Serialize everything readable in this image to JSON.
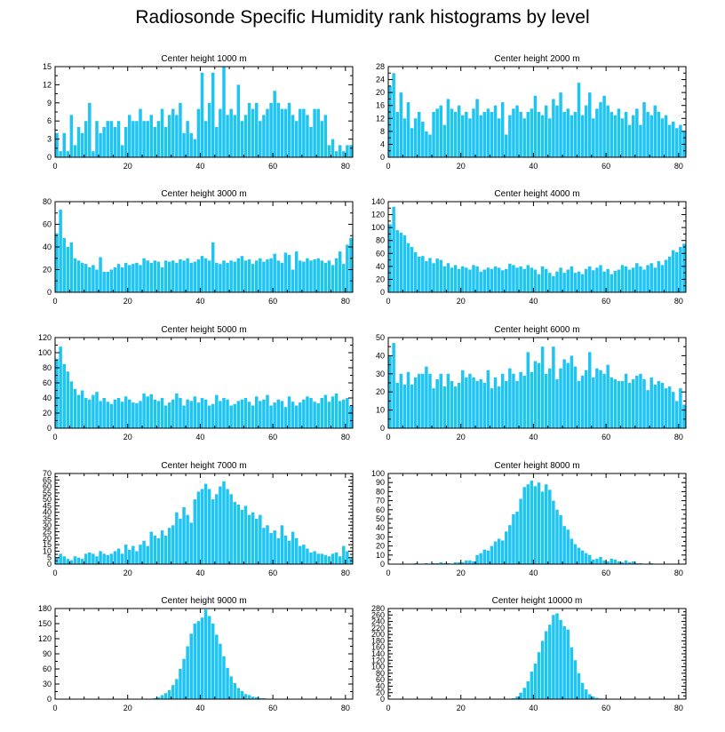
{
  "title": "Radiosonde Specific Humidity rank histograms by level",
  "bar_color": "#1ec4f2",
  "chart_data": [
    {
      "type": "bar",
      "title": "Center height 1000 m",
      "xlabel": "",
      "ylabel": "",
      "xlim": [
        0,
        82
      ],
      "ylim": [
        0,
        15
      ],
      "xticks": [
        0,
        20,
        40,
        60,
        80
      ],
      "yticks": [
        0,
        3,
        6,
        9,
        12,
        15
      ],
      "values": [
        4,
        1,
        4,
        1,
        7,
        2,
        5,
        4,
        6,
        9,
        1,
        6,
        4,
        5,
        6,
        6,
        5,
        6,
        2,
        5,
        7,
        6,
        6,
        8,
        6,
        6,
        7,
        5,
        6,
        8,
        5,
        7,
        8,
        7,
        9,
        4,
        6,
        4,
        3,
        8,
        14,
        6,
        9,
        14,
        5,
        8,
        15,
        7,
        8,
        7,
        12,
        6,
        7,
        9,
        8,
        9,
        6,
        7,
        8,
        9,
        11,
        9,
        8,
        8,
        9,
        7,
        6,
        8,
        8,
        7,
        5,
        8,
        8,
        6,
        7,
        2,
        3,
        1,
        2,
        1,
        2,
        2
      ]
    },
    {
      "type": "bar",
      "title": "Center height 2000 m",
      "xlabel": "",
      "ylabel": "",
      "xlim": [
        0,
        82
      ],
      "ylim": [
        0,
        28
      ],
      "xticks": [
        0,
        20,
        40,
        60,
        80
      ],
      "yticks": [
        0,
        4,
        8,
        12,
        16,
        20,
        24,
        28
      ],
      "values": [
        22,
        26,
        14,
        20,
        12,
        17,
        9,
        12,
        14,
        11,
        8,
        7,
        14,
        15,
        16,
        10,
        18,
        15,
        14,
        16,
        13,
        14,
        12,
        15,
        18,
        13,
        14,
        15,
        14,
        16,
        12,
        17,
        7,
        13,
        15,
        16,
        14,
        12,
        14,
        15,
        19,
        14,
        13,
        16,
        12,
        18,
        16,
        20,
        14,
        15,
        13,
        14,
        23,
        13,
        16,
        20,
        12,
        15,
        17,
        19,
        16,
        14,
        13,
        15,
        12,
        14,
        10,
        13,
        15,
        10,
        17,
        14,
        13,
        16,
        14,
        12,
        13,
        10,
        11,
        9,
        10,
        8
      ]
    },
    {
      "type": "bar",
      "title": "Center height 3000 m",
      "xlabel": "",
      "ylabel": "",
      "xlim": [
        0,
        82
      ],
      "ylim": [
        0,
        80
      ],
      "xticks": [
        0,
        20,
        40,
        60,
        80
      ],
      "yticks": [
        0,
        20,
        40,
        60,
        80
      ],
      "values": [
        52,
        73,
        48,
        40,
        44,
        30,
        28,
        26,
        25,
        22,
        24,
        20,
        31,
        18,
        18,
        20,
        22,
        25,
        22,
        26,
        24,
        25,
        26,
        24,
        30,
        28,
        26,
        28,
        27,
        22,
        28,
        27,
        28,
        26,
        29,
        28,
        30,
        26,
        27,
        29,
        32,
        30,
        28,
        44,
        26,
        25,
        28,
        26,
        28,
        27,
        30,
        32,
        28,
        29,
        25,
        28,
        30,
        27,
        29,
        30,
        34,
        28,
        26,
        35,
        33,
        20,
        36,
        28,
        27,
        30,
        28,
        29,
        30,
        28,
        26,
        28,
        24,
        30,
        36,
        25,
        42,
        48
      ]
    },
    {
      "type": "bar",
      "title": "Center height 4000 m",
      "xlabel": "",
      "ylabel": "",
      "xlim": [
        0,
        82
      ],
      "ylim": [
        0,
        140
      ],
      "xticks": [
        0,
        20,
        40,
        60,
        80
      ],
      "yticks": [
        0,
        20,
        40,
        60,
        80,
        100,
        120,
        140
      ],
      "values": [
        105,
        132,
        96,
        92,
        88,
        76,
        70,
        62,
        55,
        56,
        48,
        53,
        45,
        52,
        50,
        40,
        45,
        38,
        42,
        36,
        40,
        38,
        35,
        42,
        40,
        32,
        35,
        38,
        36,
        40,
        38,
        34,
        36,
        44,
        42,
        38,
        40,
        36,
        42,
        38,
        35,
        28,
        40,
        36,
        30,
        25,
        32,
        38,
        30,
        35,
        40,
        30,
        32,
        28,
        36,
        40,
        34,
        38,
        42,
        32,
        36,
        28,
        33,
        35,
        42,
        40,
        35,
        38,
        45,
        40,
        35,
        42,
        45,
        38,
        48,
        42,
        50,
        55,
        65,
        62,
        70,
        75
      ]
    },
    {
      "type": "bar",
      "title": "Center height 5000 m",
      "xlabel": "",
      "ylabel": "",
      "xlim": [
        0,
        82
      ],
      "ylim": [
        0,
        120
      ],
      "xticks": [
        0,
        20,
        40,
        60,
        80
      ],
      "yticks": [
        0,
        20,
        40,
        60,
        80,
        100,
        120
      ],
      "values": [
        92,
        108,
        85,
        75,
        62,
        52,
        44,
        50,
        40,
        38,
        44,
        48,
        36,
        40,
        35,
        32,
        38,
        40,
        35,
        42,
        38,
        34,
        33,
        36,
        46,
        42,
        45,
        38,
        36,
        40,
        30,
        34,
        38,
        46,
        40,
        30,
        38,
        36,
        42,
        34,
        40,
        38,
        30,
        32,
        44,
        36,
        40,
        38,
        30,
        32,
        36,
        38,
        40,
        35,
        30,
        42,
        36,
        38,
        44,
        30,
        34,
        38,
        36,
        28,
        42,
        35,
        30,
        34,
        38,
        42,
        40,
        35,
        33,
        40,
        44,
        35,
        42,
        46,
        36,
        38,
        40,
        30
      ]
    },
    {
      "type": "bar",
      "title": "Center height 6000 m",
      "xlabel": "",
      "ylabel": "",
      "xlim": [
        0,
        82
      ],
      "ylim": [
        0,
        50
      ],
      "xticks": [
        0,
        20,
        40,
        60,
        80
      ],
      "yticks": [
        0,
        10,
        20,
        30,
        40,
        50
      ],
      "values": [
        40,
        47,
        25,
        30,
        24,
        31,
        24,
        28,
        30,
        30,
        34,
        30,
        22,
        27,
        30,
        23,
        30,
        26,
        23,
        25,
        32,
        28,
        30,
        28,
        26,
        27,
        25,
        32,
        22,
        28,
        23,
        30,
        26,
        33,
        30,
        26,
        31,
        29,
        42,
        31,
        37,
        36,
        45,
        30,
        33,
        45,
        27,
        33,
        38,
        36,
        40,
        34,
        26,
        29,
        32,
        42,
        28,
        33,
        32,
        30,
        35,
        28,
        27,
        26,
        26,
        30,
        25,
        27,
        29,
        30,
        27,
        21,
        28,
        24,
        26,
        25,
        22,
        23,
        20,
        15,
        22,
        13
      ]
    },
    {
      "type": "bar",
      "title": "Center height 7000 m",
      "xlabel": "",
      "ylabel": "",
      "xlim": [
        0,
        82
      ],
      "ylim": [
        0,
        70
      ],
      "xticks": [
        0,
        20,
        40,
        60,
        80
      ],
      "yticks": [
        0,
        5,
        10,
        15,
        20,
        25,
        30,
        35,
        40,
        45,
        50,
        55,
        60,
        65,
        70
      ],
      "values": [
        5,
        8,
        6,
        4,
        3,
        6,
        5,
        4,
        8,
        9,
        8,
        6,
        10,
        8,
        7,
        8,
        10,
        12,
        8,
        15,
        11,
        14,
        10,
        15,
        18,
        14,
        25,
        22,
        20,
        26,
        22,
        28,
        30,
        40,
        35,
        44,
        38,
        32,
        50,
        56,
        58,
        62,
        58,
        50,
        54,
        60,
        64,
        58,
        54,
        48,
        46,
        42,
        45,
        38,
        40,
        35,
        38,
        28,
        30,
        24,
        26,
        20,
        30,
        22,
        18,
        25,
        20,
        14,
        15,
        12,
        9,
        10,
        8,
        8,
        7,
        6,
        8,
        9,
        6,
        14,
        10,
        5
      ]
    },
    {
      "type": "bar",
      "title": "Center height 8000 m",
      "xlabel": "",
      "ylabel": "",
      "xlim": [
        0,
        82
      ],
      "ylim": [
        0,
        100
      ],
      "xticks": [
        0,
        20,
        40,
        60,
        80
      ],
      "yticks": [
        0,
        10,
        20,
        30,
        40,
        50,
        60,
        70,
        80,
        90,
        100
      ],
      "values": [
        0,
        0,
        0,
        0,
        0,
        0,
        0,
        1,
        0,
        0,
        1,
        0,
        1,
        1,
        2,
        1,
        1,
        0,
        2,
        2,
        2,
        4,
        4,
        3,
        10,
        12,
        16,
        15,
        20,
        25,
        28,
        26,
        36,
        43,
        55,
        58,
        72,
        85,
        88,
        92,
        86,
        90,
        80,
        88,
        82,
        70,
        60,
        54,
        42,
        38,
        28,
        22,
        18,
        15,
        12,
        10,
        5,
        6,
        8,
        4,
        3,
        6,
        5,
        3,
        2,
        4,
        2,
        3,
        1,
        1,
        0,
        0,
        1,
        0,
        0,
        0,
        0,
        0,
        0,
        0,
        0,
        0
      ]
    },
    {
      "type": "bar",
      "title": "Center height 9000 m",
      "xlabel": "",
      "ylabel": "",
      "xlim": [
        0,
        82
      ],
      "ylim": [
        0,
        180
      ],
      "xticks": [
        0,
        20,
        40,
        60,
        80
      ],
      "yticks": [
        0,
        30,
        60,
        90,
        120,
        150,
        180
      ],
      "values": [
        0,
        0,
        0,
        0,
        0,
        0,
        0,
        0,
        0,
        0,
        0,
        0,
        0,
        0,
        0,
        0,
        0,
        0,
        0,
        0,
        0,
        0,
        0,
        0,
        0,
        0,
        1,
        2,
        4,
        8,
        12,
        18,
        28,
        40,
        60,
        80,
        105,
        130,
        150,
        155,
        162,
        178,
        165,
        150,
        128,
        110,
        85,
        62,
        45,
        32,
        22,
        16,
        10,
        8,
        5,
        4,
        2,
        2,
        1,
        0,
        0,
        0,
        0,
        0,
        0,
        0,
        0,
        0,
        0,
        0,
        0,
        0,
        0,
        0,
        0,
        0,
        0,
        0,
        0,
        0,
        0,
        0
      ]
    },
    {
      "type": "bar",
      "title": "Center height 10000 m",
      "xlabel": "",
      "ylabel": "",
      "xlim": [
        0,
        82
      ],
      "ylim": [
        0,
        280
      ],
      "xticks": [
        0,
        20,
        40,
        60,
        80
      ],
      "yticks": [
        0,
        20,
        40,
        60,
        80,
        100,
        120,
        140,
        160,
        180,
        200,
        220,
        240,
        260,
        280
      ],
      "values": [
        0,
        0,
        0,
        0,
        0,
        0,
        0,
        0,
        0,
        0,
        0,
        0,
        0,
        0,
        0,
        0,
        0,
        0,
        0,
        0,
        0,
        0,
        0,
        0,
        0,
        0,
        0,
        0,
        0,
        0,
        0,
        0,
        0,
        1,
        3,
        8,
        20,
        35,
        55,
        85,
        110,
        145,
        180,
        210,
        230,
        260,
        265,
        245,
        225,
        215,
        160,
        120,
        80,
        50,
        30,
        15,
        8,
        4,
        2,
        1,
        0,
        0,
        0,
        0,
        0,
        0,
        0,
        0,
        0,
        0,
        0,
        0,
        0,
        0,
        0,
        0,
        0,
        0,
        0,
        0,
        0,
        0
      ]
    }
  ]
}
